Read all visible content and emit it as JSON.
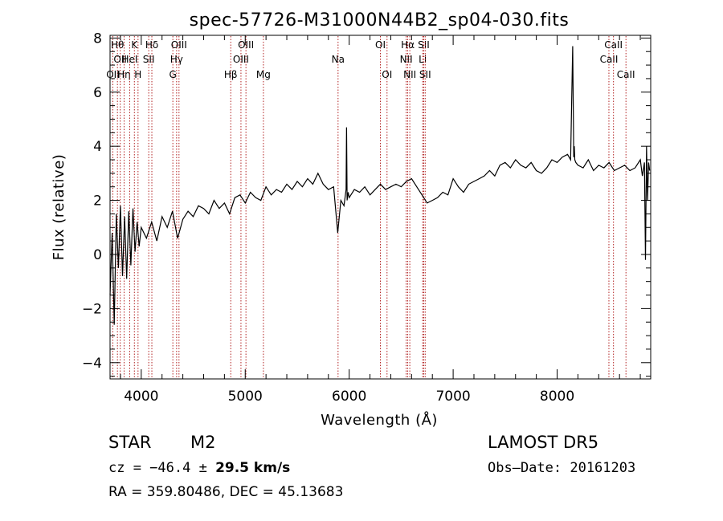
{
  "chart_data": {
    "type": "line",
    "title": "spec-57726-M31000N44B2_sp04-030.fits",
    "xlabel": "Wavelength (Å)",
    "ylabel": "Flux (relative)",
    "xlim": [
      3700,
      8900
    ],
    "ylim": [
      -4.6,
      8.1
    ],
    "x_ticks": [
      4000,
      5000,
      6000,
      7000,
      8000
    ],
    "y_ticks": [
      -4,
      -2,
      0,
      2,
      4,
      6,
      8
    ],
    "grid": false,
    "series": [
      {
        "x": [
          3700,
          3720,
          3740,
          3760,
          3780,
          3800,
          3820,
          3840,
          3860,
          3880,
          3900,
          3920,
          3940,
          3960,
          3980,
          4000,
          4050,
          4100,
          4150,
          4200,
          4250,
          4300,
          4350,
          4400,
          4450,
          4500,
          4550,
          4600,
          4650,
          4700,
          4750,
          4800,
          4850,
          4900,
          4950,
          5000,
          5050,
          5100,
          5150,
          5200,
          5250,
          5300,
          5350,
          5400,
          5450,
          5500,
          5550,
          5600,
          5650,
          5700,
          5750,
          5800,
          5850,
          5890,
          5920,
          5950,
          5970,
          5975,
          5980,
          5990,
          6000,
          6050,
          6100,
          6150,
          6200,
          6250,
          6300,
          6350,
          6400,
          6450,
          6500,
          6550,
          6600,
          6650,
          6700,
          6750,
          6800,
          6850,
          6900,
          6950,
          7000,
          7050,
          7100,
          7150,
          7200,
          7250,
          7300,
          7350,
          7400,
          7450,
          7500,
          7550,
          7600,
          7650,
          7700,
          7750,
          7800,
          7850,
          7900,
          7950,
          8000,
          8050,
          8100,
          8130,
          8150,
          8160,
          8165,
          8170,
          8180,
          8200,
          8250,
          8300,
          8350,
          8400,
          8450,
          8500,
          8550,
          8600,
          8650,
          8700,
          8750,
          8800,
          8820,
          8840,
          8850,
          8860,
          8870,
          8880,
          8890
        ],
        "y": [
          -1.5,
          0.8,
          -2.6,
          1.5,
          -0.5,
          1.8,
          -0.8,
          1.4,
          -0.9,
          1.6,
          -0.4,
          1.7,
          0.1,
          1.2,
          0.3,
          1.0,
          0.6,
          1.2,
          0.5,
          1.4,
          1.0,
          1.6,
          0.6,
          1.3,
          1.6,
          1.4,
          1.8,
          1.7,
          1.5,
          2.0,
          1.7,
          1.9,
          1.5,
          2.1,
          2.2,
          1.9,
          2.3,
          2.1,
          2.0,
          2.5,
          2.2,
          2.4,
          2.3,
          2.6,
          2.4,
          2.7,
          2.5,
          2.8,
          2.6,
          3.0,
          2.6,
          2.4,
          2.5,
          0.8,
          2.0,
          1.8,
          2.4,
          4.7,
          2.0,
          2.3,
          2.1,
          2.4,
          2.3,
          2.5,
          2.2,
          2.4,
          2.6,
          2.4,
          2.5,
          2.6,
          2.5,
          2.7,
          2.8,
          2.5,
          2.2,
          1.9,
          2.0,
          2.1,
          2.3,
          2.2,
          2.8,
          2.5,
          2.3,
          2.6,
          2.7,
          2.8,
          2.9,
          3.1,
          2.9,
          3.3,
          3.4,
          3.2,
          3.5,
          3.3,
          3.2,
          3.4,
          3.1,
          3.0,
          3.2,
          3.5,
          3.4,
          3.6,
          3.7,
          3.5,
          7.7,
          3.6,
          4.0,
          3.5,
          3.4,
          3.3,
          3.2,
          3.5,
          3.1,
          3.3,
          3.2,
          3.4,
          3.1,
          3.2,
          3.3,
          3.1,
          3.2,
          3.5,
          2.9,
          3.4,
          -0.2,
          4.0,
          2.0,
          3.4,
          3.1
        ]
      }
    ],
    "lines": [
      {
        "x": 3727,
        "label": "OII",
        "row": 3
      },
      {
        "x": 3771,
        "label": "Hθ",
        "row": 1
      },
      {
        "x": 3798,
        "label": "OII",
        "row": 2
      },
      {
        "x": 3835,
        "label": "Hη",
        "row": 3
      },
      {
        "x": 3889,
        "label": "HeI",
        "row": 2
      },
      {
        "x": 3934,
        "label": "K",
        "row": 1
      },
      {
        "x": 3969,
        "label": "H",
        "row": 3
      },
      {
        "x": 4072,
        "label": "SII",
        "row": 2
      },
      {
        "x": 4102,
        "label": "Hδ",
        "row": 1
      },
      {
        "x": 4304,
        "label": "G",
        "row": 3
      },
      {
        "x": 4340,
        "label": "Hγ",
        "row": 2
      },
      {
        "x": 4363,
        "label": "OIII",
        "row": 1
      },
      {
        "x": 4861,
        "label": "Hβ",
        "row": 3
      },
      {
        "x": 4959,
        "label": "OIII",
        "row": 2
      },
      {
        "x": 5007,
        "label": "OIII",
        "row": 1
      },
      {
        "x": 5175,
        "label": "Mg",
        "row": 3
      },
      {
        "x": 5893,
        "label": "Na",
        "row": 2
      },
      {
        "x": 6300,
        "label": "OI",
        "row": 1
      },
      {
        "x": 6364,
        "label": "OI",
        "row": 3
      },
      {
        "x": 6548,
        "label": "NII",
        "row": 2
      },
      {
        "x": 6563,
        "label": "Hα",
        "row": 1
      },
      {
        "x": 6583,
        "label": "NII",
        "row": 3
      },
      {
        "x": 6707,
        "label": "Li",
        "row": 2
      },
      {
        "x": 6717,
        "label": "SII",
        "row": 1
      },
      {
        "x": 6731,
        "label": "SII",
        "row": 3
      },
      {
        "x": 8498,
        "label": "CaII",
        "row": 2
      },
      {
        "x": 8542,
        "label": "CaII",
        "row": 1
      },
      {
        "x": 8662,
        "label": "CaII",
        "row": 3
      }
    ]
  },
  "info": {
    "object_class": "STAR",
    "subclass": "M2",
    "survey": "LAMOST  DR5",
    "redshift_prefix": "cz = −46.4 ± ",
    "redshift_value": "29.5 km/s",
    "obs_date": "Obs–Date: 20161203",
    "coords": "RA = 359.80486, DEC =  45.13683"
  }
}
